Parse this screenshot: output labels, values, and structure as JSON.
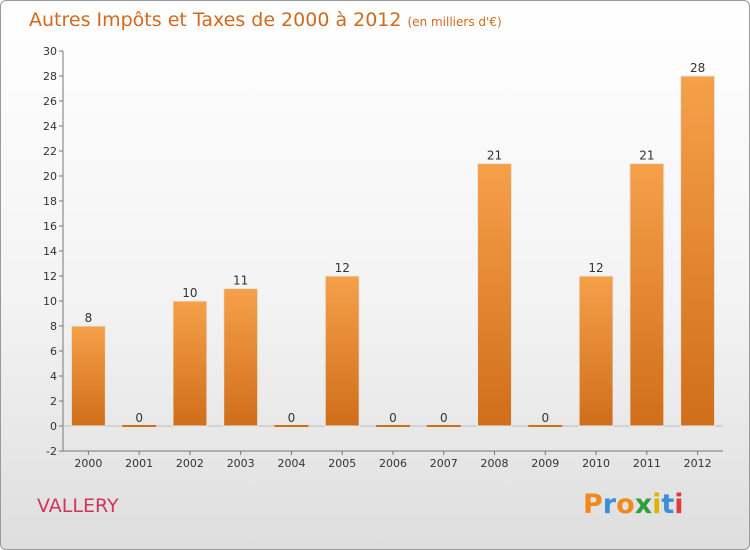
{
  "header": {
    "title": "Autres Impôts et Taxes de 2000 à 2012",
    "unit": "(en milliers d'€)"
  },
  "commune": "VALLERY",
  "logo": {
    "text": "Proxiti",
    "letters": [
      "P",
      "r",
      "o",
      "x",
      "i",
      "t",
      "i"
    ],
    "colors": [
      "#f08a1c",
      "#3a8fd8",
      "#f08a1c",
      "#2f9e3c",
      "#e0b400",
      "#3a8fd8",
      "#e03c3c"
    ]
  },
  "chart_data": {
    "type": "bar",
    "categories": [
      "2000",
      "2001",
      "2002",
      "2003",
      "2004",
      "2005",
      "2006",
      "2007",
      "2008",
      "2009",
      "2010",
      "2011",
      "2012"
    ],
    "values": [
      8,
      0,
      10,
      11,
      0,
      12,
      0,
      0,
      21,
      0,
      12,
      21,
      28
    ],
    "data_labels": [
      "8",
      "0",
      "10",
      "11",
      "0",
      "12",
      "0",
      "0",
      "21",
      "0",
      "12",
      "21",
      "28"
    ],
    "y_ticks": [
      -2,
      0,
      2,
      4,
      6,
      8,
      10,
      12,
      14,
      16,
      18,
      20,
      22,
      24,
      26,
      28,
      30
    ],
    "ylim": [
      -2,
      30
    ],
    "grid": false,
    "bar_color": "#f0963e",
    "bar_color_dark": "#d06e1a"
  }
}
